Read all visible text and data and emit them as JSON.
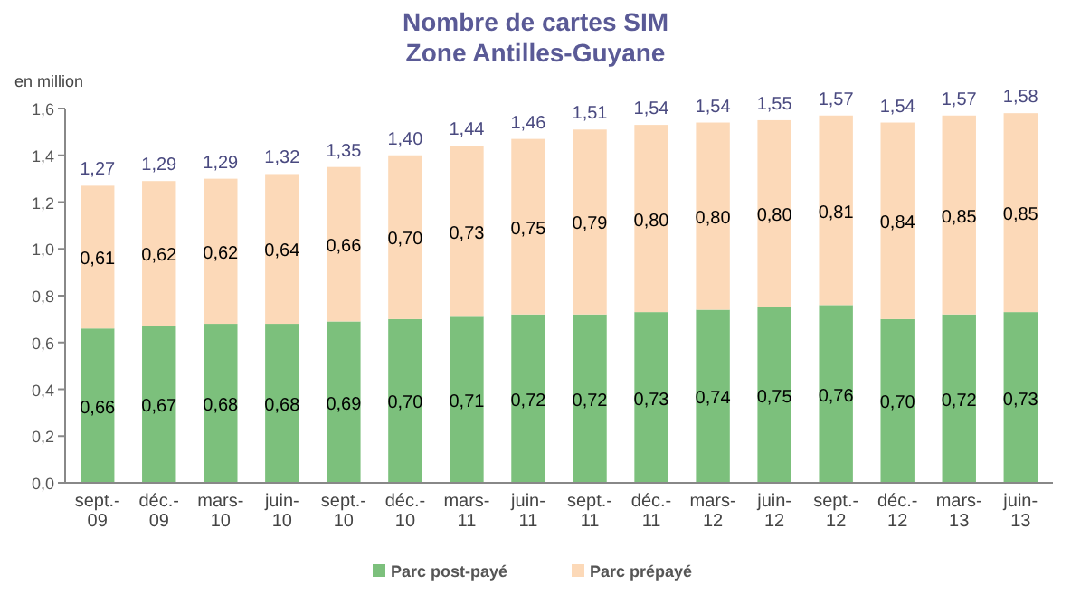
{
  "chart_data": {
    "type": "bar",
    "title": "Nombre de cartes SIM",
    "subtitle": "Zone Antilles-Guyane",
    "ylabel": "en million",
    "categories": [
      "sept.-09",
      "déc.-09",
      "mars-10",
      "juin-10",
      "sept.-10",
      "déc.-10",
      "mars-11",
      "juin-11",
      "sept.-11",
      "déc.-11",
      "mars-12",
      "juin-12",
      "sept.-12",
      "déc.-12",
      "mars-13",
      "juin-13"
    ],
    "stacked": true,
    "legend": "bottom",
    "grid": false,
    "ylim": [
      0,
      1.6
    ],
    "yticks": [
      {
        "value": 0,
        "label": "0,0"
      },
      {
        "value": 0.2,
        "label": "0,2"
      },
      {
        "value": 0.4,
        "label": "0,4"
      },
      {
        "value": 0.6,
        "label": "0,6"
      },
      {
        "value": 0.8,
        "label": "0,8"
      },
      {
        "value": 1,
        "label": "1,0"
      },
      {
        "value": 1.2,
        "label": "1,2"
      },
      {
        "value": 1.4,
        "label": "1,4"
      },
      {
        "value": 1.6,
        "label": "1,6"
      }
    ],
    "series": [
      {
        "name": "Parc post-payé",
        "color": "#7cc07c",
        "values": [
          0.66,
          0.67,
          0.68,
          0.68,
          0.69,
          0.7,
          0.71,
          0.72,
          0.72,
          0.73,
          0.74,
          0.75,
          0.76,
          0.7,
          0.72,
          0.73
        ],
        "value_labels": [
          "0,66",
          "0,67",
          "0,68",
          "0,68",
          "0,69",
          "0,70",
          "0,71",
          "0,72",
          "0,72",
          "0,73",
          "0,74",
          "0,75",
          "0,76",
          "0,70",
          "0,72",
          "0,73"
        ]
      },
      {
        "name": "Parc prépayé",
        "color": "#fcd9b8",
        "values": [
          0.61,
          0.62,
          0.62,
          0.64,
          0.66,
          0.7,
          0.73,
          0.75,
          0.79,
          0.8,
          0.8,
          0.8,
          0.81,
          0.84,
          0.85,
          0.85
        ],
        "value_labels": [
          "0,61",
          "0,62",
          "0,62",
          "0,64",
          "0,66",
          "0,70",
          "0,73",
          "0,75",
          "0,79",
          "0,80",
          "0,80",
          "0,80",
          "0,81",
          "0,84",
          "0,85",
          "0,85"
        ]
      }
    ],
    "totals": [
      "1,27",
      "1,29",
      "1,29",
      "1,32",
      "1,35",
      "1,40",
      "1,44",
      "1,46",
      "1,51",
      "1,54",
      "1,54",
      "1,55",
      "1,57",
      "1,54",
      "1,57",
      "1,58"
    ]
  }
}
